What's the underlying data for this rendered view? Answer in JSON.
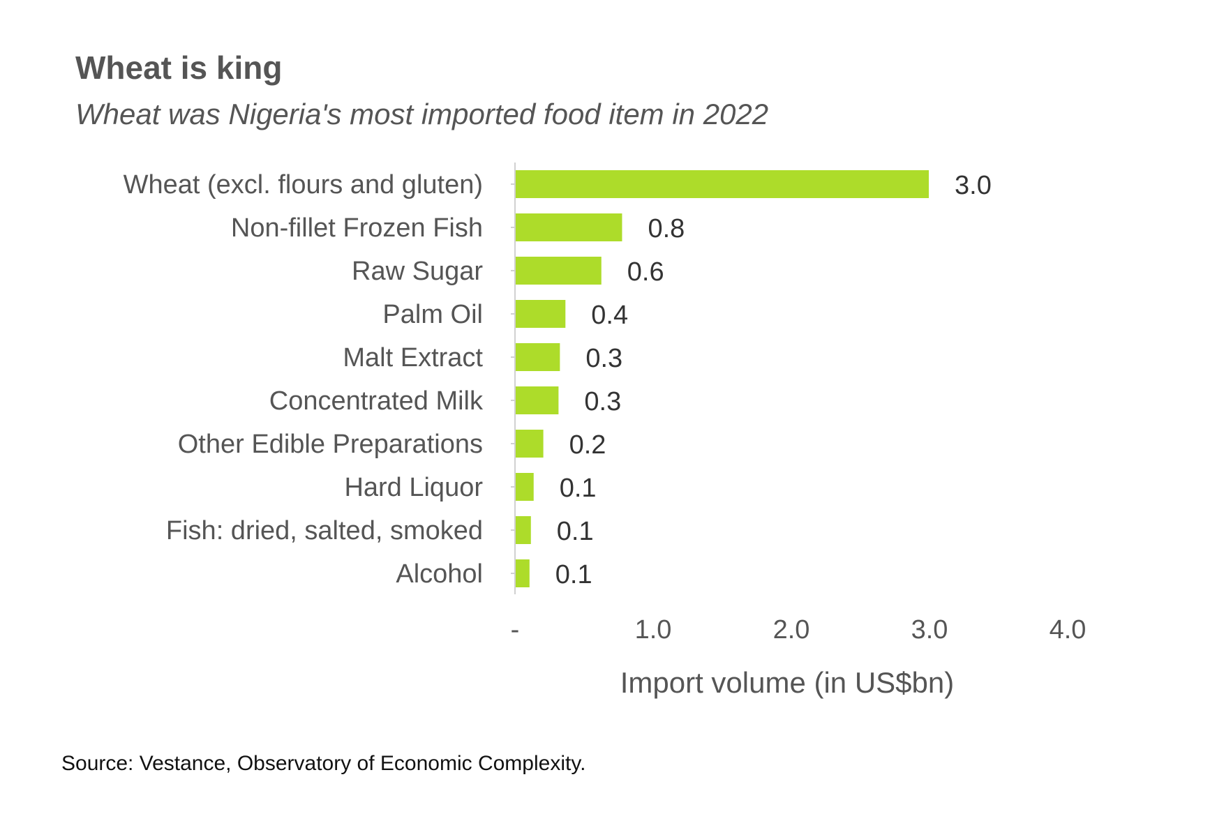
{
  "header": {
    "title": "Wheat is king",
    "subtitle": "Wheat was Nigeria's most imported food item in 2022"
  },
  "footer": {
    "source": "Source: Vestance, Observatory of Economic Complexity."
  },
  "colors": {
    "bar": "#addc2a",
    "axis": "#d0d0d0",
    "text": "#555555"
  },
  "chart_data": {
    "type": "bar",
    "orientation": "horizontal",
    "title": "Wheat is king",
    "subtitle": "Wheat was Nigeria's most imported food item in 2022",
    "categories": [
      "Wheat (excl. flours and gluten)",
      "Non-fillet Frozen Fish",
      "Raw Sugar",
      "Palm Oil",
      "Malt Extract",
      "Concentrated Milk",
      "Other Edible Preparations",
      "Hard Liquor",
      "Fish: dried, salted, smoked",
      "Alcohol"
    ],
    "values": [
      2.99,
      0.77,
      0.62,
      0.36,
      0.32,
      0.31,
      0.2,
      0.13,
      0.11,
      0.1
    ],
    "value_labels": [
      "3.0",
      "0.8",
      "0.6",
      "0.4",
      "0.3",
      "0.3",
      "0.2",
      "0.1",
      "0.1",
      "0.1"
    ],
    "xlabel": "Import volume (in US$bn)",
    "ylabel": "",
    "xlim": [
      0,
      4
    ],
    "xticks": [
      0,
      1,
      2,
      3,
      4
    ],
    "xtick_labels": [
      "-",
      "1.0",
      "2.0",
      "3.0",
      "4.0"
    ],
    "grid": false,
    "legend": "none"
  }
}
